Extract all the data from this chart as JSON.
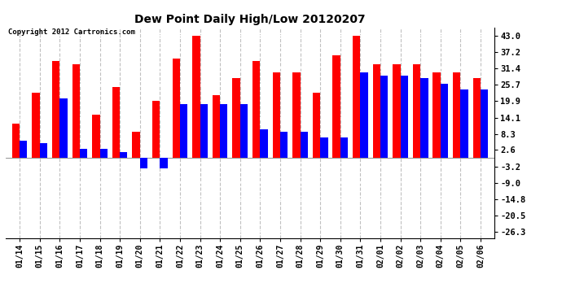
{
  "title": "Dew Point Daily High/Low 20120207",
  "copyright": "Copyright 2012 Cartronics.com",
  "dates": [
    "01/14",
    "01/15",
    "01/16",
    "01/17",
    "01/18",
    "01/19",
    "01/20",
    "01/21",
    "01/22",
    "01/23",
    "01/24",
    "01/25",
    "01/26",
    "01/27",
    "01/28",
    "01/29",
    "01/30",
    "01/31",
    "02/01",
    "02/02",
    "02/03",
    "02/04",
    "02/05",
    "02/06"
  ],
  "high": [
    12.0,
    23.0,
    34.0,
    33.0,
    15.0,
    25.0,
    9.0,
    20.0,
    35.0,
    43.0,
    22.0,
    28.0,
    34.0,
    30.0,
    30.0,
    23.0,
    36.0,
    43.0,
    33.0,
    33.0,
    33.0,
    30.0,
    30.0,
    28.0
  ],
  "low": [
    6.0,
    5.0,
    21.0,
    3.0,
    3.0,
    2.0,
    -4.0,
    -4.0,
    19.0,
    19.0,
    19.0,
    19.0,
    10.0,
    9.0,
    9.0,
    7.0,
    7.0,
    30.0,
    29.0,
    29.0,
    28.0,
    26.0,
    24.0,
    24.0
  ],
  "high_color": "#ff0000",
  "low_color": "#0000ff",
  "background_color": "#ffffff",
  "grid_color": "#c0c0c0",
  "yticks": [
    43.0,
    37.2,
    31.4,
    25.7,
    19.9,
    14.1,
    8.3,
    2.6,
    -3.2,
    -9.0,
    -14.8,
    -20.5,
    -26.3
  ],
  "ylim": [
    -28.5,
    46.0
  ],
  "bar_width": 0.38
}
